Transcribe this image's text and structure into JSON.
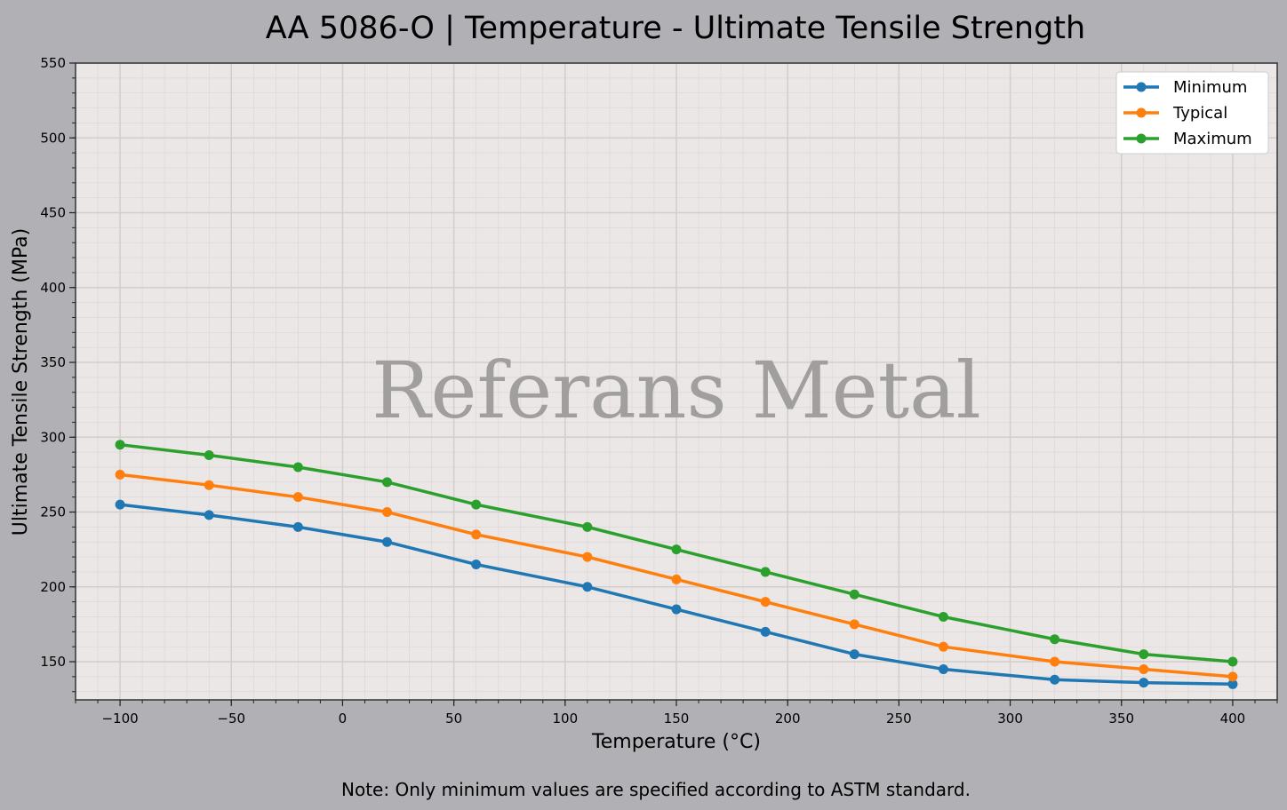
{
  "chart_data": {
    "type": "line",
    "title": "AA 5086-O | Temperature - Ultimate Tensile Strength",
    "xlabel": "Temperature (°C)",
    "ylabel": "Ultimate Tensile Strength (MPa)",
    "xlim": [
      -120,
      420
    ],
    "ylim": [
      124.5,
      550
    ],
    "xticks": [
      -100,
      -50,
      0,
      50,
      100,
      150,
      200,
      250,
      300,
      350,
      400
    ],
    "xtick_labels": [
      "−100",
      "−50",
      "0",
      "50",
      "100",
      "150",
      "200",
      "250",
      "300",
      "350",
      "400"
    ],
    "yticks": [
      150,
      200,
      250,
      300,
      350,
      400,
      450,
      500,
      550
    ],
    "grid": true,
    "legend_position": "top-right",
    "x": [
      -100,
      -60,
      -20,
      20,
      60,
      110,
      150,
      190,
      230,
      270,
      320,
      360,
      400
    ],
    "series": [
      {
        "name": "Minimum",
        "color": "#1f77b4",
        "values": [
          255,
          248,
          240,
          230,
          215,
          200,
          185,
          170,
          155,
          145,
          138,
          136,
          135
        ]
      },
      {
        "name": "Typical",
        "color": "#ff7f0e",
        "values": [
          275,
          268,
          260,
          250,
          235,
          220,
          205,
          190,
          175,
          160,
          150,
          145,
          140
        ]
      },
      {
        "name": "Maximum",
        "color": "#2ca02c",
        "values": [
          295,
          288,
          280,
          270,
          255,
          240,
          225,
          210,
          195,
          180,
          165,
          155,
          150
        ]
      }
    ],
    "watermark": "Referans Metal",
    "note": "Note: Only minimum values are specified according to ASTM standard."
  }
}
